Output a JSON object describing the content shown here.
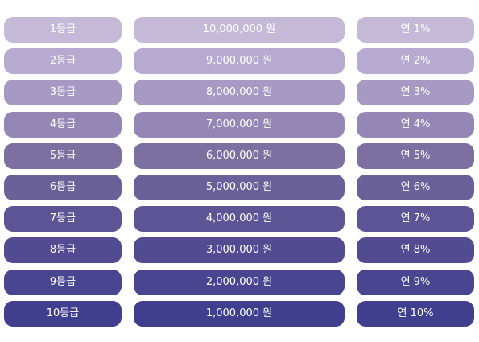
{
  "rows": [
    {
      "grade": "1등급",
      "amount": "10,000,000 원",
      "rate": "연 1%",
      "color": "#c4bad7"
    },
    {
      "grade": "2등급",
      "amount": "9,000,000 원",
      "rate": "연 2%",
      "color": "#b7aad0"
    },
    {
      "grade": "3등급",
      "amount": "8,000,000 원",
      "rate": "연 3%",
      "color": "#a699c3"
    },
    {
      "grade": "4등급",
      "amount": "7,000,000 원",
      "rate": "연 4%",
      "color": "#9487b5"
    },
    {
      "grade": "5등급",
      "amount": "6,000,000 원",
      "rate": "연 5%",
      "color": "#7b70a0"
    },
    {
      "grade": "6등급",
      "amount": "5,000,000 원",
      "rate": "연 6%",
      "color": "#6b6199"
    },
    {
      "grade": "7등급",
      "amount": "4,000,000 원",
      "rate": "연 7%",
      "color": "#5d5495"
    },
    {
      "grade": "8등급",
      "amount": "3,000,000 원",
      "rate": "연 8%",
      "color": "#524b92"
    },
    {
      "grade": "9등급",
      "amount": "2,000,000 원",
      "rate": "연 9%",
      "color": "#4a4590"
    },
    {
      "grade": "10등급",
      "amount": "1,000,000 원",
      "rate": "연 10%",
      "color": "#403f8e"
    }
  ]
}
